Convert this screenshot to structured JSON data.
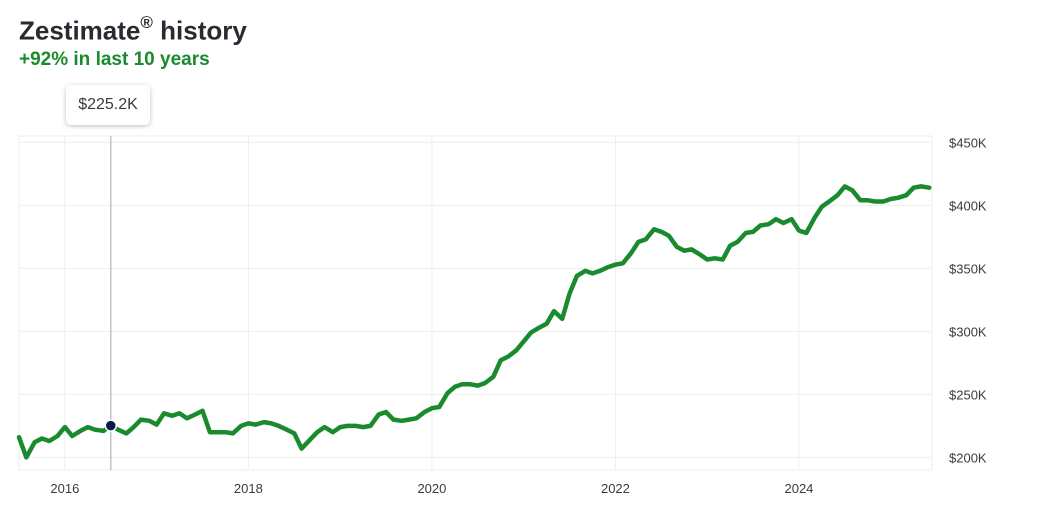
{
  "header": {
    "title": "Zestimate",
    "title_mark": "®",
    "title_suffix": " history",
    "subtitle": "+92% in last 10 years"
  },
  "tooltip": {
    "label": "$225.2K"
  },
  "colors": {
    "line": "#1a8a2e",
    "subtitle": "#1a8a2e",
    "marker": "#0d1b4c",
    "grid": "#eeeeee"
  },
  "chart_data": {
    "type": "line",
    "title": "Zestimate® history",
    "subtitle": "+92% in last 10 years",
    "xlabel": "",
    "ylabel": "",
    "xlim": [
      2015.5,
      2025.45
    ],
    "ylim": [
      190,
      455
    ],
    "x_ticks": [
      2016,
      2018,
      2020,
      2022,
      2024
    ],
    "x_tick_labels": [
      "2016",
      "2018",
      "2020",
      "2022",
      "2024"
    ],
    "y_ticks": [
      200,
      250,
      300,
      350,
      400,
      450
    ],
    "y_tick_labels": [
      "$200K",
      "$250K",
      "$300K",
      "$350K",
      "$400K",
      "$450K"
    ],
    "grid": true,
    "highlight": {
      "x": 2016.5,
      "y": 225.2,
      "label": "$225.2K"
    },
    "series": [
      {
        "x": [
          2015.5,
          2015.58,
          2015.67,
          2015.75,
          2015.83,
          2015.92,
          2016.0,
          2016.08,
          2016.17,
          2016.25,
          2016.33,
          2016.42,
          2016.5,
          2016.58,
          2016.67,
          2016.75,
          2016.83,
          2016.92,
          2017.0,
          2017.08,
          2017.17,
          2017.25,
          2017.33,
          2017.42,
          2017.5,
          2017.58,
          2017.67,
          2017.75,
          2017.83,
          2017.92,
          2018.0,
          2018.08,
          2018.17,
          2018.25,
          2018.33,
          2018.42,
          2018.5,
          2018.58,
          2018.67,
          2018.75,
          2018.83,
          2018.92,
          2019.0,
          2019.08,
          2019.17,
          2019.25,
          2019.33,
          2019.42,
          2019.5,
          2019.58,
          2019.67,
          2019.75,
          2019.83,
          2019.92,
          2020.0,
          2020.08,
          2020.17,
          2020.25,
          2020.33,
          2020.42,
          2020.5,
          2020.58,
          2020.67,
          2020.75,
          2020.83,
          2020.92,
          2021.0,
          2021.08,
          2021.17,
          2021.25,
          2021.33,
          2021.42,
          2021.5,
          2021.58,
          2021.67,
          2021.75,
          2021.83,
          2021.92,
          2022.0,
          2022.08,
          2022.17,
          2022.25,
          2022.33,
          2022.42,
          2022.5,
          2022.58,
          2022.67,
          2022.75,
          2022.83,
          2022.92,
          2023.0,
          2023.08,
          2023.17,
          2023.25,
          2023.33,
          2023.42,
          2023.5,
          2023.58,
          2023.67,
          2023.75,
          2023.83,
          2023.92,
          2024.0,
          2024.08,
          2024.17,
          2024.25,
          2024.33,
          2024.42,
          2024.5,
          2024.58,
          2024.67,
          2024.75,
          2024.83,
          2024.92,
          2025.0,
          2025.08,
          2025.17,
          2025.25,
          2025.33,
          2025.42
        ],
        "values": [
          216,
          200,
          212,
          215,
          213,
          217,
          224,
          217,
          221,
          224,
          222,
          221,
          225.2,
          222,
          219,
          224,
          230,
          229,
          226,
          235,
          233,
          235,
          231,
          234,
          237,
          220,
          220,
          220,
          219,
          225,
          227,
          226,
          228,
          227,
          225,
          222,
          219,
          207,
          214,
          220,
          224,
          220,
          224,
          225,
          225,
          224,
          225,
          234,
          236,
          230,
          229,
          230,
          231,
          236,
          239,
          240,
          251,
          256,
          258,
          258,
          257,
          259,
          264,
          277,
          280,
          285,
          292,
          299,
          303,
          306,
          316,
          310,
          330,
          344,
          348,
          346,
          348,
          351,
          353,
          354,
          362,
          371,
          373,
          381,
          379,
          376,
          367,
          364,
          365,
          361,
          357,
          358,
          357,
          368,
          371,
          378,
          379,
          384,
          385,
          389,
          386,
          389,
          380,
          378,
          390,
          399,
          403,
          408,
          415,
          412,
          404,
          404,
          403,
          403,
          405,
          406,
          408,
          414,
          415,
          414
        ]
      }
    ]
  }
}
